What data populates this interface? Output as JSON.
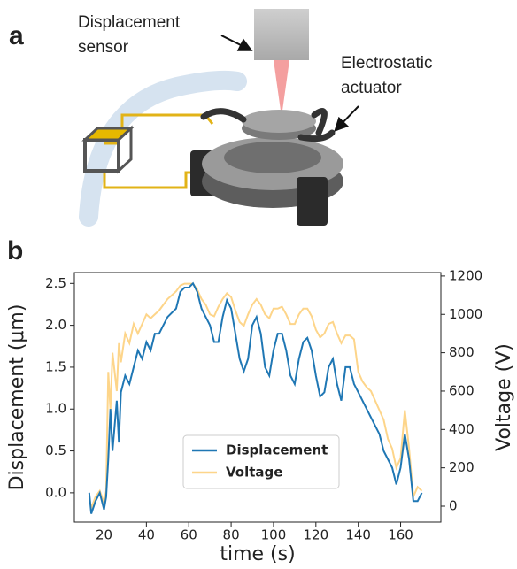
{
  "figure": {
    "panel_a": {
      "label": "a",
      "annotations": [
        {
          "lines": [
            "Displacement",
            "sensor"
          ]
        },
        {
          "lines": [
            "Electrostatic",
            "actuator"
          ]
        }
      ]
    },
    "panel_b": {
      "label": "b"
    }
  },
  "chart_data": {
    "type": "line",
    "xlabel": "time (s)",
    "ylabel": "Displacement (μm)",
    "y2label": "Voltage (V)",
    "x": [
      13,
      14,
      16,
      18,
      20,
      21,
      22,
      23,
      24,
      26,
      27,
      28,
      30,
      32,
      34,
      36,
      38,
      40,
      42,
      44,
      46,
      48,
      50,
      52,
      54,
      56,
      58,
      60,
      62,
      64,
      66,
      68,
      70,
      72,
      74,
      76,
      78,
      80,
      82,
      84,
      86,
      88,
      90,
      92,
      94,
      96,
      98,
      100,
      102,
      104,
      106,
      108,
      110,
      112,
      114,
      116,
      118,
      120,
      122,
      124,
      126,
      128,
      130,
      132,
      134,
      136,
      138,
      140,
      142,
      144,
      146,
      148,
      150,
      152,
      154,
      156,
      158,
      160,
      162,
      164,
      166,
      168,
      170
    ],
    "series": [
      {
        "name": "Displacement",
        "color": "#1f77b4",
        "axis": "y",
        "values": [
          0.0,
          -0.25,
          -0.1,
          0.0,
          -0.2,
          -0.05,
          0.4,
          1.0,
          0.5,
          1.1,
          0.6,
          1.2,
          1.4,
          1.3,
          1.5,
          1.7,
          1.6,
          1.8,
          1.7,
          1.9,
          1.9,
          2.0,
          2.1,
          2.15,
          2.2,
          2.4,
          2.45,
          2.45,
          2.5,
          2.4,
          2.2,
          2.1,
          2.0,
          1.8,
          1.8,
          2.1,
          2.3,
          2.2,
          1.9,
          1.6,
          1.45,
          1.6,
          2.0,
          2.1,
          1.9,
          1.5,
          1.4,
          1.7,
          1.9,
          1.9,
          1.7,
          1.4,
          1.3,
          1.6,
          1.8,
          1.85,
          1.7,
          1.4,
          1.15,
          1.2,
          1.5,
          1.6,
          1.3,
          1.1,
          1.5,
          1.5,
          1.3,
          1.2,
          1.1,
          1.0,
          0.9,
          0.8,
          0.7,
          0.5,
          0.4,
          0.3,
          0.1,
          0.3,
          0.7,
          0.4,
          -0.1,
          -0.1,
          0.0
        ]
      },
      {
        "name": "Voltage",
        "color": "#fdd58a",
        "axis": "y2",
        "values": [
          50,
          -10,
          50,
          80,
          20,
          80,
          700,
          500,
          800,
          600,
          850,
          750,
          900,
          850,
          950,
          900,
          950,
          1000,
          980,
          1000,
          1020,
          1050,
          1080,
          1100,
          1120,
          1150,
          1160,
          1160,
          1160,
          1130,
          1080,
          1050,
          1000,
          990,
          1040,
          1080,
          1110,
          1090,
          1020,
          960,
          940,
          1000,
          1050,
          1080,
          1050,
          1000,
          980,
          1030,
          1030,
          1040,
          1000,
          950,
          950,
          1000,
          1030,
          1030,
          990,
          920,
          880,
          900,
          950,
          960,
          900,
          850,
          890,
          890,
          870,
          700,
          650,
          620,
          600,
          550,
          500,
          450,
          350,
          300,
          200,
          250,
          500,
          300,
          50,
          100,
          80
        ]
      }
    ],
    "xlim": [
      6,
      179
    ],
    "xticks": [
      20,
      40,
      60,
      80,
      100,
      120,
      140,
      160
    ],
    "ylim": [
      -0.35,
      2.63
    ],
    "yticks": [
      {
        "value": 0,
        "label": "0.0"
      },
      {
        "value": 0.5,
        "label": "0.5"
      },
      {
        "value": 1,
        "label": "1.0"
      },
      {
        "value": 1.5,
        "label": "1.5"
      },
      {
        "value": 2,
        "label": "2.0"
      },
      {
        "value": 2.5,
        "label": "2.5"
      }
    ],
    "y2lim": [
      -83,
      1218
    ],
    "y2ticks": [
      0,
      200,
      400,
      600,
      800,
      1000,
      1200
    ],
    "legend": "lower center",
    "grid": false
  }
}
